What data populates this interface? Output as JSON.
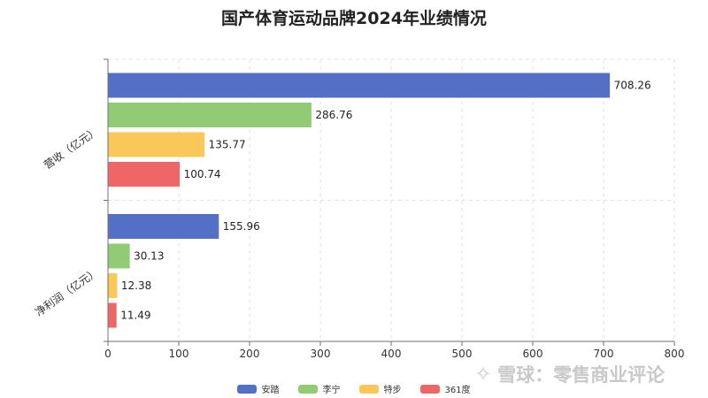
{
  "chart_data": {
    "type": "bar",
    "orientation": "horizontal",
    "title": "国产体育运动品牌2024年业绩情况",
    "categories": [
      "营收（亿元）",
      "净利润（亿元）"
    ],
    "series": [
      {
        "name": "安踏",
        "color": "#5470c6",
        "values": [
          708.26,
          155.96
        ]
      },
      {
        "name": "李宁",
        "color": "#91cc75",
        "values": [
          286.76,
          30.13
        ]
      },
      {
        "name": "特步",
        "color": "#fac858",
        "values": [
          135.77,
          12.38
        ]
      },
      {
        "name": "361度",
        "color": "#ee6666",
        "values": [
          100.74,
          11.49
        ]
      }
    ],
    "xlim": [
      0,
      800
    ],
    "xticks": [
      0,
      100,
      200,
      300,
      400,
      500,
      600,
      700,
      800
    ],
    "grid": true,
    "legend_position": "bottom"
  },
  "watermark": {
    "text": "雪球：零售商业评论",
    "icon": "snowball-logo-icon"
  }
}
